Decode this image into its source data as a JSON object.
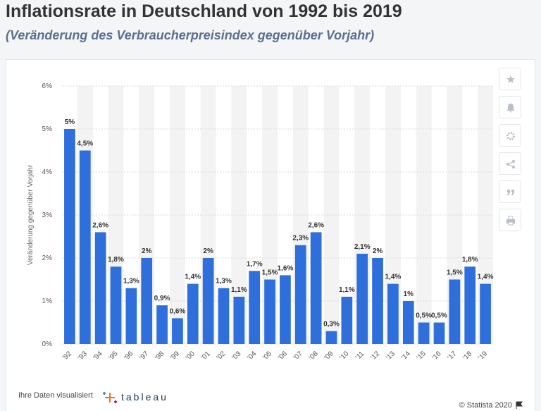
{
  "chart_data": {
    "type": "bar",
    "title": "Inflationsrate in Deutschland von 1992 bis 2019",
    "subtitle": "(Veränderung des Verbraucherpreisindex gegenüber Vorjahr)",
    "ylabel": "Veränderung gegenüber Vorjahr",
    "categories": [
      "'92",
      "'93",
      "'94",
      "'95",
      "'96",
      "'97",
      "'98",
      "'99",
      "'00",
      "'01",
      "'02",
      "'03",
      "'04",
      "'05",
      "'06",
      "'07",
      "'08",
      "'09",
      "'10",
      "'11",
      "'12",
      "'13",
      "'14",
      "'15",
      "'16",
      "'17",
      "'18",
      "'19"
    ],
    "values": [
      5,
      4.5,
      2.6,
      1.8,
      1.3,
      2,
      0.9,
      0.6,
      1.4,
      2,
      1.3,
      1.1,
      1.7,
      1.5,
      1.6,
      2.3,
      2.6,
      0.3,
      1.1,
      2.1,
      2,
      1.4,
      1,
      0.5,
      0.5,
      1.5,
      1.8,
      1.4
    ],
    "value_labels": [
      "5%",
      "4,5%",
      "2,6%",
      "1,8%",
      "1,3%",
      "2%",
      "0,9%",
      "0,6%",
      "1,4%",
      "2%",
      "1,3%",
      "1,1%",
      "1,7%",
      "1,5%",
      "1,6%",
      "2,3%",
      "2,6%",
      "0,3%",
      "1,1%",
      "2,1%",
      "2%",
      "1,4%",
      "1%",
      "0,5%",
      "0,5%",
      "1,5%",
      "1,8%",
      "1,4%"
    ],
    "color": "#2f6fdc",
    "ylim": [
      0,
      6
    ],
    "yticks": [
      {
        "value": 0,
        "label": "0%"
      },
      {
        "value": 1,
        "label": "1%"
      },
      {
        "value": 2,
        "label": "2%"
      },
      {
        "value": 3,
        "label": "3%"
      },
      {
        "value": 4,
        "label": "4%"
      },
      {
        "value": 5,
        "label": "5%"
      },
      {
        "value": 6,
        "label": "6%"
      }
    ],
    "grid": true,
    "credit": "Ihre Daten visualisiert",
    "brand": "tableau",
    "source": "© Statista 2020"
  }
}
